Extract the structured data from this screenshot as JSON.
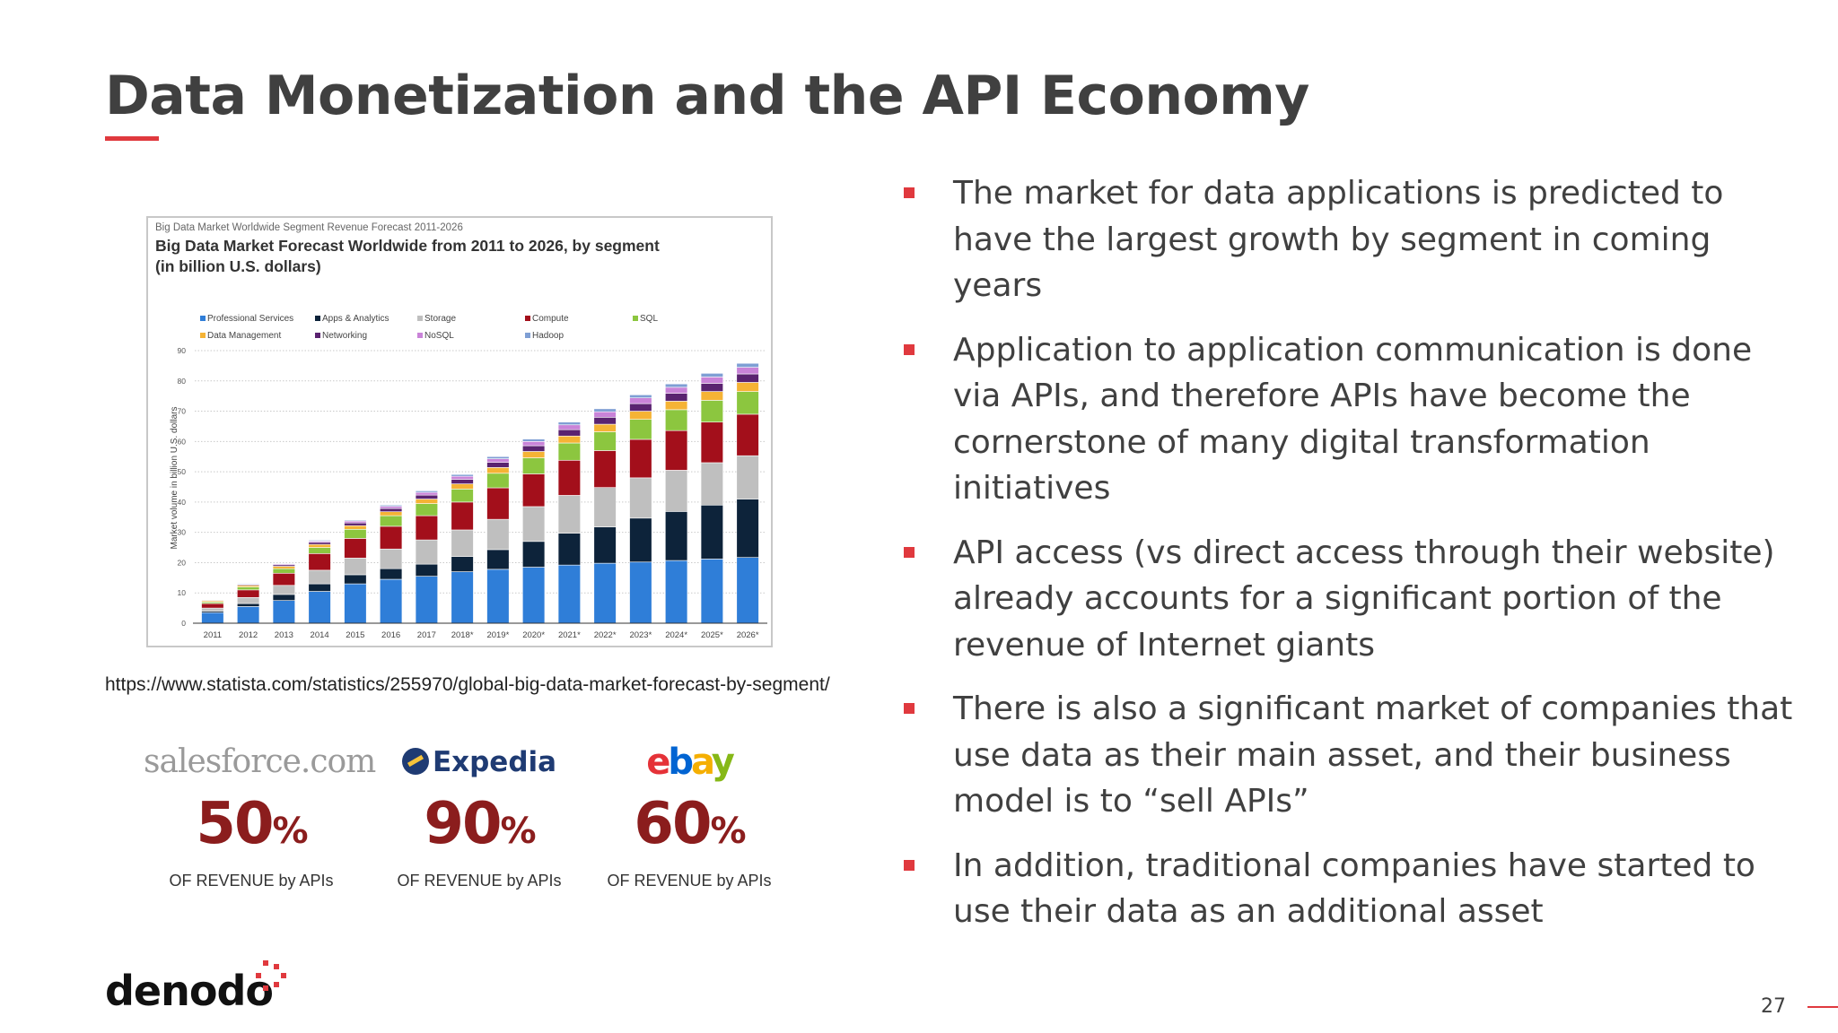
{
  "slide": {
    "title": "Data Monetization and the API Economy",
    "source_url": "https://www.statista.com/statistics/255970/global-big-data-market-forecast-by-segment/",
    "page_number": "27",
    "brand": "denodo",
    "accent_color": "#e0393e"
  },
  "bullets": [
    "The market for data applications is predicted to have the largest growth by segment in coming years",
    "Application to application communication is done via APIs, and therefore APIs have become the cornerstone of many digital transformation initiatives",
    "API access (vs direct access through their website) already accounts for a significant portion of the revenue of Internet giants",
    "There is also a significant market of companies that use data as their main asset, and their business model is to “sell APIs”",
    "In addition, traditional companies have started to use their data as an additional asset"
  ],
  "companies": [
    {
      "logo": "salesforce.com",
      "percent": "50",
      "percent_sign": "%",
      "label": "OF REVENUE by APIs"
    },
    {
      "logo": "Expedia",
      "percent": "90",
      "percent_sign": "%",
      "label": "OF REVENUE by APIs"
    },
    {
      "logo": "ebay",
      "percent": "60",
      "percent_sign": "%",
      "label": "OF REVENUE by APIs"
    }
  ],
  "chart_data": {
    "type": "bar",
    "stacked": true,
    "header": "Big Data Market Worldwide Segment Revenue Forecast 2011-2026",
    "title": "Big Data Market Forecast Worldwide from 2011 to 2026, by segment\n(in billion U.S. dollars)",
    "xlabel": "",
    "ylabel": "Market volume in billion U.S. dollars",
    "ylim": [
      0,
      90
    ],
    "yticks": [
      0,
      10,
      20,
      30,
      40,
      50,
      60,
      70,
      80,
      90
    ],
    "grid": true,
    "legend_position": "top",
    "categories": [
      "2011",
      "2012",
      "2013",
      "2014",
      "2015",
      "2016",
      "2017",
      "2018*",
      "2019*",
      "2020*",
      "2021*",
      "2022*",
      "2023*",
      "2024*",
      "2025*",
      "2026*"
    ],
    "series": [
      {
        "name": "Professional Services",
        "color": "#2f7ed8",
        "values": [
          3.5,
          5.5,
          7.5,
          10.5,
          13,
          14.5,
          15.5,
          17,
          17.8,
          18.5,
          19.2,
          19.8,
          20.2,
          20.7,
          21.2,
          21.7
        ]
      },
      {
        "name": "Apps & Analytics",
        "color": "#0d233a",
        "values": [
          0.5,
          1,
          2,
          2.5,
          3,
          3.5,
          4,
          5,
          6.5,
          8.5,
          10.5,
          12,
          14.5,
          16.2,
          17.8,
          19.3
        ]
      },
      {
        "name": "Storage",
        "color": "#bfbfbf",
        "values": [
          1,
          2,
          3,
          4.5,
          5.5,
          6.5,
          8,
          8.8,
          10,
          11.5,
          12.5,
          13,
          13.3,
          13.6,
          14,
          14.3
        ]
      },
      {
        "name": "Compute",
        "color": "#a30f1b",
        "values": [
          1.5,
          2.5,
          4,
          5.5,
          6.5,
          7.5,
          8,
          9.2,
          10.4,
          10.8,
          11.6,
          12.2,
          12.7,
          13.1,
          13.4,
          13.7
        ]
      },
      {
        "name": "SQL",
        "color": "#8cc63f",
        "values": [
          0.5,
          1,
          1.5,
          2,
          3,
          3.5,
          4,
          4.3,
          4.8,
          5.3,
          5.7,
          6.2,
          6.6,
          6.9,
          7.2,
          7.5
        ]
      },
      {
        "name": "Data Management",
        "color": "#f5b335",
        "values": [
          0.4,
          0.5,
          0.8,
          1,
          1.2,
          1.3,
          1.5,
          1.7,
          1.9,
          2.1,
          2.3,
          2.5,
          2.7,
          2.8,
          2.9,
          3
        ]
      },
      {
        "name": "Networking",
        "color": "#5a2370",
        "values": [
          0.2,
          0.3,
          0.5,
          0.7,
          0.9,
          1.1,
          1.3,
          1.5,
          1.7,
          1.9,
          2.1,
          2.3,
          2.5,
          2.6,
          2.7,
          2.8
        ]
      },
      {
        "name": "NoSQL",
        "color": "#c983d8",
        "values": [
          0.1,
          0.2,
          0.3,
          0.4,
          0.6,
          0.7,
          0.9,
          1,
          1.2,
          1.4,
          1.6,
          1.8,
          1.9,
          2,
          2.1,
          2.2
        ]
      },
      {
        "name": "Hadoop",
        "color": "#7f9fd4",
        "values": [
          0.1,
          0.2,
          0.2,
          0.3,
          0.3,
          0.4,
          0.5,
          0.6,
          0.7,
          0.8,
          0.9,
          1,
          1,
          1.1,
          1.2,
          1.3
        ]
      }
    ]
  }
}
